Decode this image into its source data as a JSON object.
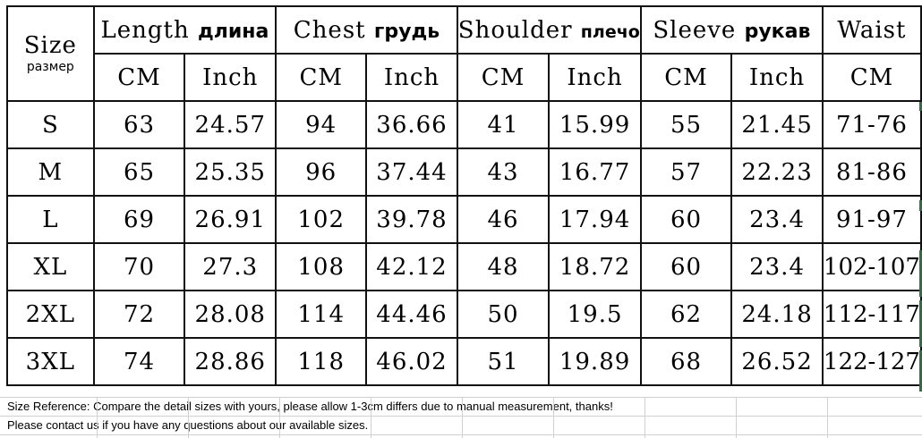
{
  "headers": {
    "size": {
      "en": "Size",
      "ru": "размер"
    },
    "groups": [
      {
        "en": "Length",
        "ru": "длина"
      },
      {
        "en": "Chest",
        "ru": "грудь"
      },
      {
        "en": "Shoulder",
        "ru": "плечо"
      },
      {
        "en": "Sleeve",
        "ru": "рукав"
      },
      {
        "en": "Waist",
        "ru": ""
      }
    ],
    "units": [
      "CM",
      "Inch",
      "CM",
      "Inch",
      "CM",
      "Inch",
      "CM",
      "Inch",
      "CM"
    ]
  },
  "rows": [
    [
      "S",
      "63",
      "24.57",
      "94",
      "36.66",
      "41",
      "15.99",
      "55",
      "21.45",
      "71-76"
    ],
    [
      "M",
      "65",
      "25.35",
      "96",
      "37.44",
      "43",
      "16.77",
      "57",
      "22.23",
      "81-86"
    ],
    [
      "L",
      "69",
      "26.91",
      "102",
      "39.78",
      "46",
      "17.94",
      "60",
      "23.4",
      "91-97"
    ],
    [
      "XL",
      "70",
      "27.3",
      "108",
      "42.12",
      "48",
      "18.72",
      "60",
      "23.4",
      "102-107"
    ],
    [
      "2XL",
      "72",
      "28.08",
      "114",
      "44.46",
      "50",
      "19.5",
      "62",
      "24.18",
      "112-117"
    ],
    [
      "3XL",
      "74",
      "28.86",
      "118",
      "46.02",
      "51",
      "19.89",
      "68",
      "26.52",
      "122-127"
    ]
  ],
  "notes": [
    "Size Reference: Compare the detail sizes with yours, please allow 1-3cm differs due to manual measurement, thanks!",
    " Please contact us if you have any questions about our available sizes."
  ]
}
